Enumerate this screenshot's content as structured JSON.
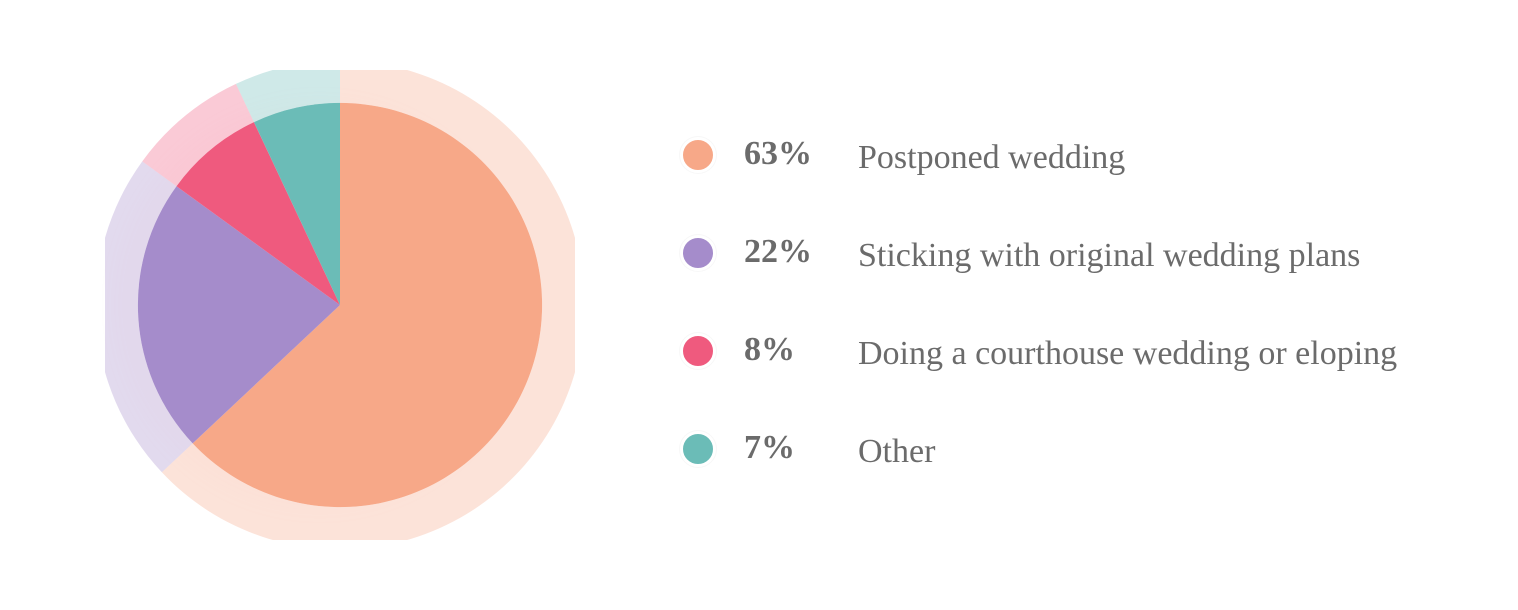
{
  "chart": {
    "type": "pie",
    "background_color": "#ffffff",
    "ring_opacity": 0.32,
    "ring_width": 18,
    "start_angle_deg": -90,
    "slices": [
      {
        "value": 63,
        "percent_label": "63%",
        "label": "Postponed wedding",
        "color": "#f7a888"
      },
      {
        "value": 22,
        "percent_label": "22%",
        "label": "Sticking with original wedding plans",
        "color": "#a58ccb"
      },
      {
        "value": 8,
        "percent_label": "8%",
        "label": "Doing a courthouse wedding or eloping",
        "color": "#ef5a7e"
      },
      {
        "value": 7,
        "percent_label": "7%",
        "label": "Other",
        "color": "#6bbcb7"
      }
    ],
    "legend": {
      "percent_fontsize": 34,
      "label_fontsize": 34,
      "text_color": "#6b6b6b",
      "dot_border_color": "#ffffff"
    }
  }
}
